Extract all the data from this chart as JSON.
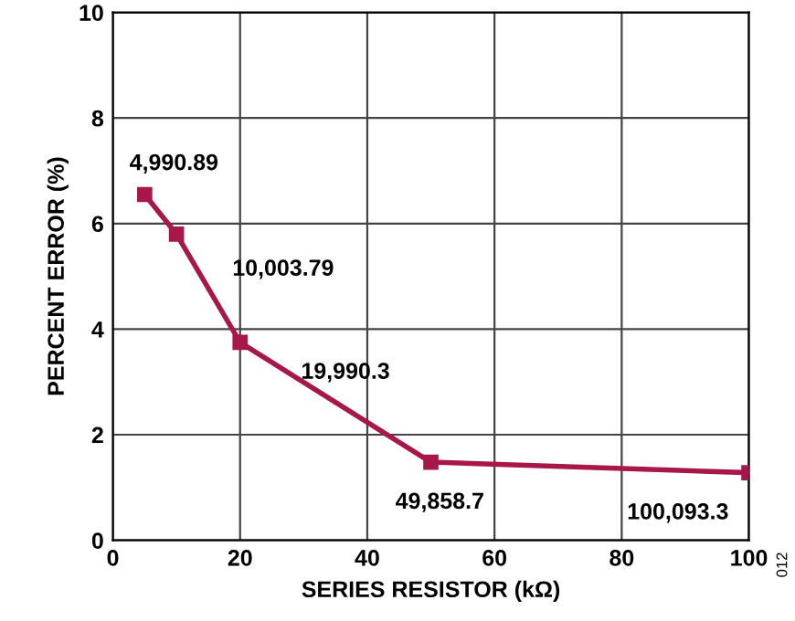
{
  "chart_data": {
    "type": "line",
    "xlabel": "SERIES RESISTOR (kΩ)",
    "ylabel": "PERCENT ERROR (%)",
    "x": [
      5,
      10,
      20,
      50,
      100
    ],
    "series": [
      {
        "color": "#a8174a",
        "values": [
          6.55,
          5.8,
          3.75,
          1.48,
          1.28
        ]
      }
    ],
    "xlim": [
      0,
      100
    ],
    "xticks": [
      0,
      20,
      40,
      60,
      80,
      100
    ],
    "ylim": [
      0,
      10
    ],
    "yticks": [
      0,
      2,
      4,
      6,
      8,
      10
    ],
    "grid": true,
    "marker": "square",
    "line_style": "solid",
    "annotations": [
      {
        "text": "4,990.89",
        "x": 5,
        "y": 6.55
      },
      {
        "text": "10,003.79",
        "x": 10,
        "y": 5.8
      },
      {
        "text": "19,990.3",
        "x": 20,
        "y": 3.75
      },
      {
        "text": "49,858.7",
        "x": 50,
        "y": 1.48
      },
      {
        "text": "100,093.3",
        "x": 100,
        "y": 1.28
      },
      "012"
    ]
  }
}
